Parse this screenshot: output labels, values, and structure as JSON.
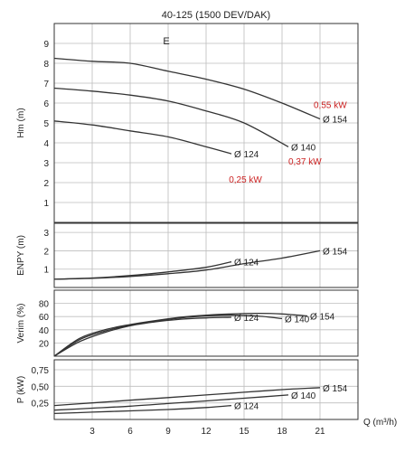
{
  "title": "40-125 (1500 DEV/DAK)",
  "chart_data": [
    {
      "type": "line",
      "panel": "head",
      "title": "40-125 (1500 DEV/DAK)",
      "annotation": "E",
      "ylabel": "Hm (m)",
      "xlim": [
        0,
        24
      ],
      "ylim": [
        0,
        10
      ],
      "yticks": [
        "1",
        "2",
        "3",
        "4",
        "5",
        "6",
        "7",
        "8",
        "9"
      ],
      "grid": true,
      "series": [
        {
          "name": "Ø 154",
          "x": [
            0,
            3,
            6,
            9,
            12,
            15,
            18,
            21
          ],
          "y": [
            8.25,
            8.1,
            8.0,
            7.6,
            7.2,
            6.7,
            6.0,
            5.2
          ]
        },
        {
          "name": "Ø 140",
          "x": [
            0,
            3,
            6,
            9,
            12,
            15,
            18.5
          ],
          "y": [
            6.75,
            6.6,
            6.4,
            6.1,
            5.6,
            5.0,
            3.8
          ]
        },
        {
          "name": "Ø 124",
          "x": [
            0,
            3,
            6,
            9,
            12,
            14
          ],
          "y": [
            5.1,
            4.9,
            4.6,
            4.3,
            3.8,
            3.45
          ]
        }
      ],
      "power_labels": [
        {
          "text": "0,55 kW",
          "x": 20.5,
          "y": 5.75
        },
        {
          "text": "0,37 kW",
          "x": 18.5,
          "y": 2.9
        },
        {
          "text": "0,25 kW",
          "x": 13.8,
          "y": 2.0
        }
      ],
      "line_color": "#333333",
      "power_label_color": "#cc2222"
    },
    {
      "type": "line",
      "panel": "npsh",
      "ylabel": "ENPY (m)",
      "xlim": [
        0,
        24
      ],
      "ylim": [
        0,
        3.5
      ],
      "yticks": [
        "1",
        "2",
        "3"
      ],
      "grid": true,
      "series": [
        {
          "name": "Ø 154",
          "x": [
            0,
            3,
            6,
            9,
            12,
            15,
            18,
            21
          ],
          "y": [
            0.45,
            0.5,
            0.6,
            0.75,
            0.95,
            1.3,
            1.6,
            2.0
          ]
        },
        {
          "name": "Ø 124",
          "x": [
            0,
            3,
            6,
            9,
            12,
            14
          ],
          "y": [
            0.45,
            0.52,
            0.65,
            0.85,
            1.1,
            1.4
          ]
        }
      ]
    },
    {
      "type": "line",
      "panel": "efficiency",
      "ylabel": "Verim (%)",
      "xlim": [
        0,
        24
      ],
      "ylim": [
        0,
        100
      ],
      "yticks": [
        "20",
        "40",
        "60",
        "80"
      ],
      "grid": true,
      "series": [
        {
          "name": "Ø 124",
          "x": [
            0,
            2,
            4,
            6,
            8,
            10,
            12,
            14
          ],
          "y": [
            0,
            22,
            36,
            46,
            52,
            56,
            58,
            59
          ]
        },
        {
          "name": "Ø 140",
          "x": [
            0,
            2,
            4,
            6,
            8,
            10,
            12,
            14,
            16,
            18
          ],
          "y": [
            0,
            25,
            38,
            47,
            53,
            58,
            61,
            62,
            61,
            57
          ]
        },
        {
          "name": "Ø 154",
          "x": [
            0,
            2,
            4,
            6,
            8,
            10,
            12,
            14,
            16,
            18,
            20
          ],
          "y": [
            0,
            27,
            40,
            48,
            54,
            59,
            62,
            64,
            65,
            64,
            61
          ]
        }
      ]
    },
    {
      "type": "line",
      "panel": "power",
      "ylabel": "P (kW)",
      "xlabel": "Q (m³/h)",
      "xlim": [
        0,
        24
      ],
      "ylim": [
        0,
        0.9
      ],
      "xticks": [
        "3",
        "6",
        "9",
        "12",
        "15",
        "18",
        "21"
      ],
      "yticks": [
        "0,25",
        "0,50",
        "0,75"
      ],
      "grid": true,
      "series": [
        {
          "name": "Ø 154",
          "x": [
            0,
            3,
            6,
            9,
            12,
            15,
            18,
            21
          ],
          "y": [
            0.21,
            0.25,
            0.29,
            0.33,
            0.37,
            0.41,
            0.45,
            0.48
          ]
        },
        {
          "name": "Ø 140",
          "x": [
            0,
            3,
            6,
            9,
            12,
            15,
            18.5
          ],
          "y": [
            0.14,
            0.17,
            0.2,
            0.24,
            0.28,
            0.32,
            0.37
          ]
        },
        {
          "name": "Ø 124",
          "x": [
            0,
            3,
            6,
            9,
            12,
            14
          ],
          "y": [
            0.09,
            0.11,
            0.13,
            0.15,
            0.18,
            0.21
          ]
        }
      ]
    }
  ]
}
